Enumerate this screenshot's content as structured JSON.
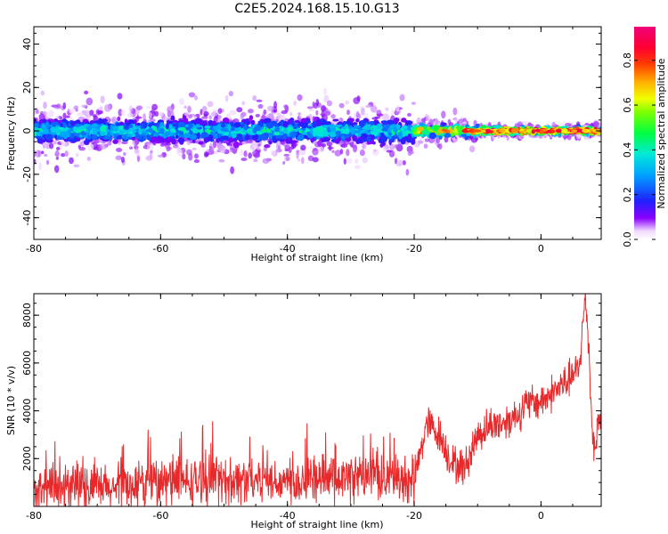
{
  "title": "C2E5.2024.168.15.10.G13",
  "colors": {
    "snr_line": "#e8292b",
    "axes": "#000000",
    "background": "#ffffff"
  },
  "colorbar": {
    "label": "Normalized spectral amplitude",
    "ticks": [
      "0.0",
      "0.2",
      "0.4",
      "0.6",
      "0.8"
    ],
    "range": [
      0,
      0.95
    ],
    "colormap": "rainbow (white-purple-blue-cyan-green-yellow-orange-red-magenta)"
  },
  "chart_data": [
    {
      "type": "heatmap",
      "name": "spectrogram",
      "xlabel": "Height of straight line (km)",
      "ylabel": "Frequency (Hz)",
      "xlim": [
        -80,
        9.5
      ],
      "ylim": [
        -50,
        48
      ],
      "xticks": [
        "-80",
        "-60",
        "-40",
        "-20",
        "0"
      ],
      "yticks": [
        "-40",
        "-20",
        "0",
        "20",
        "40"
      ],
      "description_values": {
        "dominant_frequency_hz": 0,
        "band_halfwidth_hz_near_x_-80": 6,
        "band_halfwidth_hz_near_x_0": 2,
        "peak_amplitude_region_x": [
          -12,
          9
        ]
      }
    },
    {
      "type": "line",
      "name": "snr",
      "xlabel": "Height of straight line (km)",
      "ylabel": "SNR (10 * v/v)",
      "xlim": [
        -80,
        9.5
      ],
      "ylim": [
        0,
        8900
      ],
      "xticks": [
        "-80",
        "-60",
        "-40",
        "-20",
        "0"
      ],
      "yticks": [
        "2000",
        "4000",
        "6000",
        "8000"
      ],
      "x": [
        -80,
        -76,
        -72,
        -68,
        -64,
        -60,
        -56,
        -52,
        -48,
        -44,
        -40,
        -36,
        -32,
        -28,
        -24,
        -20,
        -18,
        -16,
        -14,
        -12,
        -10,
        -8,
        -6,
        -4,
        -2,
        0,
        2,
        4,
        6,
        7,
        7.5,
        8,
        8.5,
        9,
        9.5
      ],
      "y": [
        500,
        700,
        800,
        700,
        900,
        1000,
        1000,
        1100,
        1100,
        1200,
        1000,
        1200,
        1100,
        1300,
        1200,
        1100,
        3500,
        3000,
        1800,
        1600,
        3000,
        3400,
        3500,
        3800,
        4300,
        4400,
        4800,
        5200,
        5700,
        8800,
        7000,
        3600,
        2200,
        3500,
        3800
      ]
    }
  ]
}
